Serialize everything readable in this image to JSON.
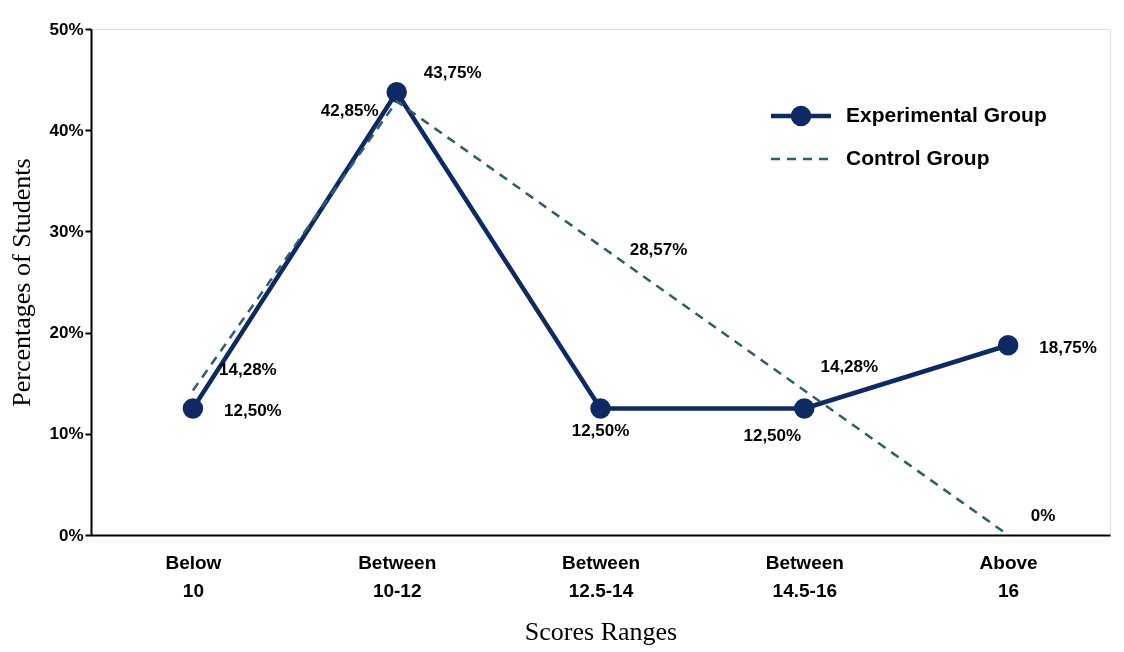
{
  "chart_data": {
    "type": "line",
    "xlabel": "Scores Ranges",
    "ylabel": "Percentages of Students",
    "categories": [
      "Below 10",
      "Between 10-12",
      "Between 12.5-14",
      "Between 14.5-16",
      "Above 16"
    ],
    "series": [
      {
        "name": "Experimental Group",
        "color": "#0f2a63",
        "marker": "circle",
        "line_style": "solid",
        "values": [
          12.5,
          43.75,
          12.5,
          12.5,
          18.75
        ],
        "value_labels": [
          "12,50%",
          "43,75%",
          "12,50%",
          "12,50%",
          "18,75%"
        ]
      },
      {
        "name": "Control Group",
        "color": "#2e5e69",
        "marker": "none",
        "line_style": "dashed",
        "values": [
          14.28,
          42.85,
          28.57,
          14.28,
          0
        ],
        "value_labels": [
          "14,28%",
          "42,85%",
          "28,57%",
          "14,28%",
          "0%"
        ]
      }
    ],
    "ylim": [
      0,
      50
    ],
    "yticks": [
      {
        "value": 0,
        "label": "0%"
      },
      {
        "value": 10,
        "label": "10%"
      },
      {
        "value": 20,
        "label": "20%"
      },
      {
        "value": 30,
        "label": "30%"
      },
      {
        "value": 40,
        "label": "40%"
      },
      {
        "value": 50,
        "label": "50%"
      }
    ],
    "grid": false,
    "legend": "top right"
  }
}
